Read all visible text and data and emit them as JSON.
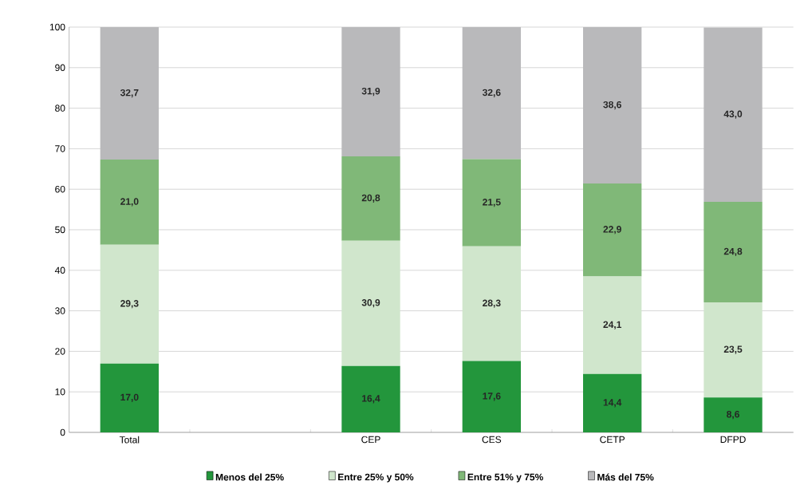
{
  "chart_data": {
    "type": "bar",
    "stacked": true,
    "categories": [
      "Total",
      null,
      "CEP",
      "CES",
      "CETP",
      "DFPD"
    ],
    "series": [
      {
        "name": "Menos del 25%",
        "color": "#23963c",
        "values": [
          17.0,
          null,
          16.4,
          17.6,
          14.4,
          8.6
        ],
        "value_labels": [
          "17,0",
          null,
          "16,4",
          "17,6",
          "14,4",
          "8,6"
        ]
      },
      {
        "name": "Entre 25% y 50%",
        "color": "#d0e6cc",
        "values": [
          29.3,
          null,
          30.9,
          28.3,
          24.1,
          23.5
        ],
        "value_labels": [
          "29,3",
          null,
          "30,9",
          "28,3",
          "24,1",
          "23,5"
        ]
      },
      {
        "name": "Entre 51% y 75%",
        "color": "#80b878",
        "values": [
          21.0,
          null,
          20.8,
          21.5,
          22.9,
          24.8
        ],
        "value_labels": [
          "21,0",
          null,
          "20,8",
          "21,5",
          "22,9",
          "24,8"
        ]
      },
      {
        "name": "Más del 75%",
        "color": "#b9b9bb",
        "values": [
          32.7,
          null,
          31.9,
          32.6,
          38.6,
          43.0
        ],
        "value_labels": [
          "32,7",
          null,
          "31,9",
          "32,6",
          "38,6",
          "43,0"
        ]
      }
    ],
    "ylim": [
      0,
      100
    ],
    "yticks": [
      0,
      10,
      20,
      30,
      40,
      50,
      60,
      70,
      80,
      90,
      100
    ],
    "grid": "y",
    "legend": "bottom"
  }
}
